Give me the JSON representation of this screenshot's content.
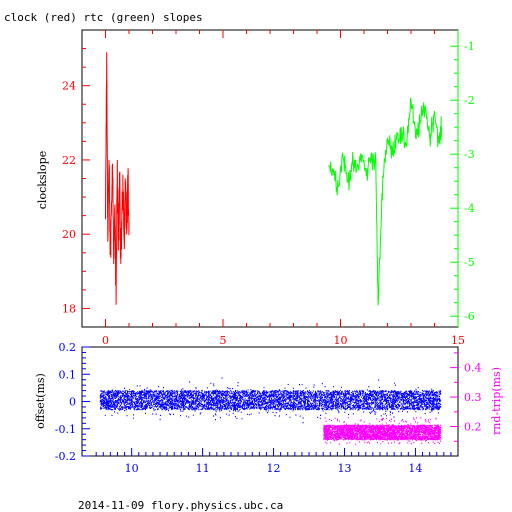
{
  "title": "clock (red) rtc (green) slopes",
  "footer": "2014-11-09 flory.physics.ubc.ca",
  "colors": {
    "clock": "#ff0000",
    "rtc": "#00ff00",
    "offset": "#0000ff",
    "rndtrip": "#ff00ff",
    "frame": "#000000"
  },
  "chart_data": [
    {
      "type": "line",
      "ylabel": "clockslope",
      "xlim": [
        -1,
        15
      ],
      "ylim_left": [
        17.5,
        25.5
      ],
      "ylim_right": [
        -6.2,
        -0.7
      ],
      "grid": false,
      "x_ticks": [
        "0",
        "5",
        "10",
        "15"
      ],
      "y_ticks_left": [
        "18",
        "20",
        "22",
        "24"
      ],
      "y_ticks_right": [
        "-6",
        "-5",
        "-4",
        "-3",
        "-2",
        "-1"
      ],
      "series": [
        {
          "name": "clock",
          "axis": "left",
          "x": [
            0.0,
            0.05,
            0.1,
            0.15,
            0.2,
            0.25,
            0.3,
            0.35,
            0.4,
            0.45,
            0.5,
            0.55,
            0.6,
            0.65,
            0.7,
            0.75,
            0.8,
            0.85,
            0.9,
            0.95,
            1.0
          ],
          "values": [
            20.4,
            24.9,
            19.8,
            22.0,
            19.5,
            20.6,
            21.9,
            19.2,
            20.8,
            18.1,
            22.0,
            19.8,
            21.6,
            19.2,
            20.7,
            21.2,
            19.6,
            21.4,
            20.0,
            21.6,
            20.3
          ]
        },
        {
          "name": "rtc",
          "axis": "right",
          "x": [
            9.5,
            9.7,
            9.9,
            10.1,
            10.3,
            10.5,
            10.7,
            10.9,
            11.1,
            11.3,
            11.5,
            11.6,
            11.8,
            12.0,
            12.2,
            12.4,
            12.6,
            12.8,
            13.0,
            13.2,
            13.4,
            13.6,
            13.8,
            14.0,
            14.2,
            14.3
          ],
          "values": [
            -3.2,
            -3.3,
            -3.6,
            -3.0,
            -3.5,
            -3.2,
            -3.3,
            -3.0,
            -3.4,
            -3.0,
            -3.2,
            -5.8,
            -3.4,
            -2.7,
            -3.0,
            -2.6,
            -2.7,
            -2.8,
            -2.0,
            -2.7,
            -2.4,
            -2.1,
            -2.7,
            -2.2,
            -2.8,
            -2.5
          ]
        }
      ]
    },
    {
      "type": "scatter",
      "xlim": [
        9.3,
        14.6
      ],
      "ylim_left": [
        -0.2,
        0.2
      ],
      "ylim_right": [
        0.1,
        0.47
      ],
      "grid": false,
      "x_ticks": [
        "10",
        "11",
        "12",
        "13",
        "14"
      ],
      "y_ticks_left": [
        "-0.2",
        "-0.1",
        "0",
        "0.1",
        "0.2"
      ],
      "y_ticks_right": [
        "0.2",
        "0.3",
        "0.4"
      ],
      "ylabel_left": "offset(ms)",
      "ylabel_right": "rnd-trip(ms)",
      "series": [
        {
          "name": "offset",
          "axis": "left",
          "x_range": [
            9.55,
            14.35
          ],
          "center": 0.0,
          "band": [
            -0.03,
            0.04
          ],
          "outlier_range": [
            -0.2,
            0.2
          ]
        },
        {
          "name": "rnd-trip",
          "axis": "right",
          "x_range": [
            12.7,
            14.35
          ],
          "center": 0.18,
          "band": [
            0.155,
            0.205
          ],
          "outlier_range": [
            0.14,
            0.23
          ]
        }
      ]
    }
  ]
}
